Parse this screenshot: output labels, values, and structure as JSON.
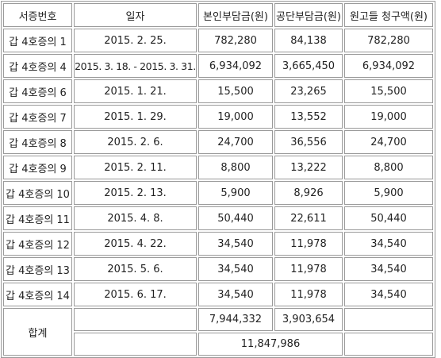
{
  "table": {
    "headers": [
      "서증번호",
      "일자",
      "본인부담금(원)",
      "공단부담금(원)",
      "원고들 청구액(원)"
    ],
    "rows": [
      [
        "갑 4호증의 1",
        "2015. 2. 25.",
        "782,280",
        "84,138",
        "782,280"
      ],
      [
        "갑 4호증의 4",
        "2015. 3. 18. - 2015. 3. 31.",
        "6,934,092",
        "3,665,450",
        "6,934,092"
      ],
      [
        "갑 4호증의 6",
        "2015. 1. 21.",
        "15,500",
        "23,265",
        "15,500"
      ],
      [
        "갑 4호증의 7",
        "2015. 1. 29.",
        "19,000",
        "13,552",
        "19,000"
      ],
      [
        "갑 4호증의 8",
        "2015. 2. 6.",
        "24,700",
        "36,556",
        "24,700"
      ],
      [
        "갑 4호증의 9",
        "2015. 2. 11.",
        "8,800",
        "13,222",
        "8,800"
      ],
      [
        "갑 4호증의 10",
        "2015. 2. 13.",
        "5,900",
        "8,926",
        "5,900"
      ],
      [
        "갑 4호증의 11",
        "2015. 4. 8.",
        "50,440",
        "22,611",
        "50,440"
      ],
      [
        "갑 4호증의 12",
        "2015. 4. 22.",
        "34,540",
        "11,978",
        "34,540"
      ],
      [
        "갑 4호증의 13",
        "2015. 5. 6.",
        "34,540",
        "11,978",
        "34,540"
      ],
      [
        "갑 4호증의 14",
        "2015. 6. 17.",
        "34,540",
        "11,978",
        "34,540"
      ]
    ],
    "total": {
      "label": "합계",
      "self_pay_sum": "7,944,332",
      "corp_pay_sum": "3,903,654",
      "combined": "11,847,986"
    }
  }
}
